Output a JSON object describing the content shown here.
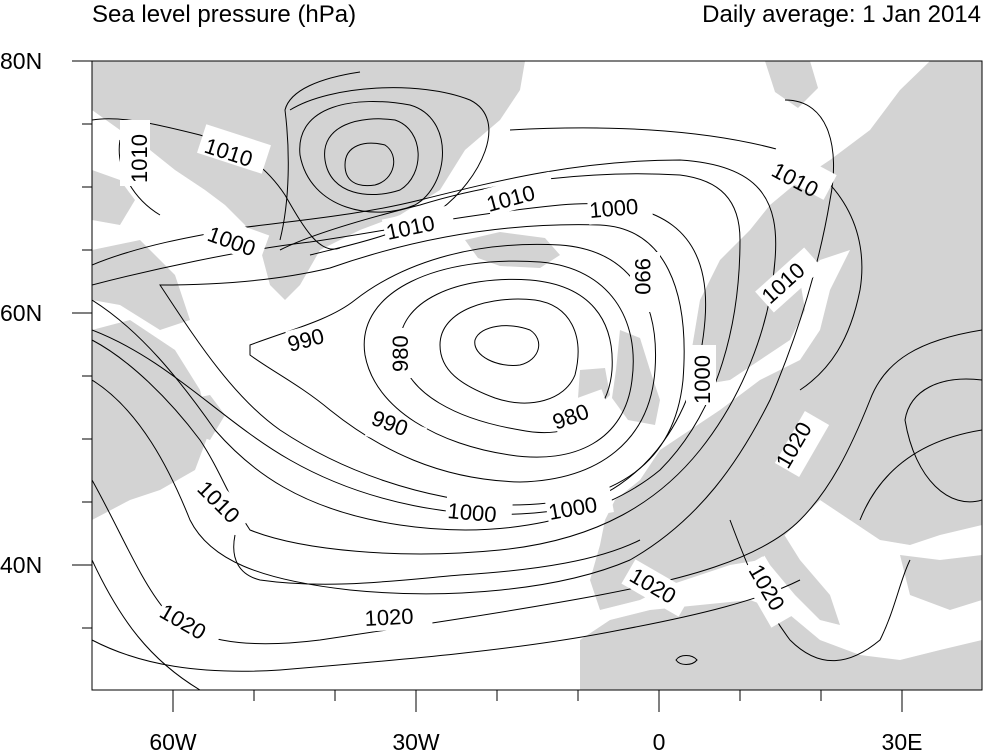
{
  "title": {
    "left": "Sea level pressure (hPa)",
    "right": "Daily average: 1 Jan 2014"
  },
  "colors": {
    "land": "#d3d3d3",
    "ocean": "#ffffff",
    "contour": "#000000"
  },
  "axes": {
    "lat_ticks": [
      "80N",
      "60N",
      "40N"
    ],
    "lon_ticks": [
      "60W",
      "30W",
      "0",
      "30E"
    ]
  },
  "contour_labels": [
    "1010",
    "1010",
    "1000",
    "1010",
    "1010",
    "1000",
    "990",
    "1010",
    "1010",
    "990",
    "980",
    "980",
    "990",
    "1000",
    "1020",
    "1010",
    "1000",
    "1000",
    "1020",
    "1020",
    "1020",
    "1020"
  ]
}
